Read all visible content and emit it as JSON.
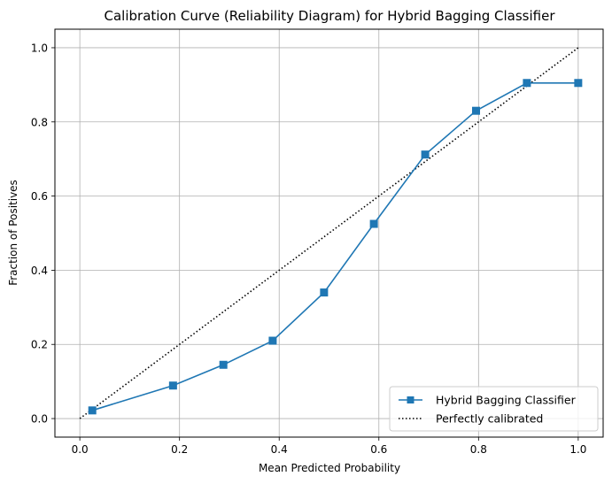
{
  "chart_data": {
    "type": "line",
    "title": "Calibration Curve (Reliability Diagram) for Hybrid Bagging Classifier",
    "xlabel": "Mean Predicted Probability",
    "ylabel": "Fraction of Positives",
    "xlim": [
      -0.05,
      1.05
    ],
    "ylim": [
      -0.05,
      1.05
    ],
    "xticks": [
      0.0,
      0.2,
      0.4,
      0.6,
      0.8,
      1.0
    ],
    "yticks": [
      0.0,
      0.2,
      0.4,
      0.6,
      0.8,
      1.0
    ],
    "xtick_labels": [
      "0.0",
      "0.2",
      "0.4",
      "0.6",
      "0.8",
      "1.0"
    ],
    "ytick_labels": [
      "0.0",
      "0.2",
      "0.4",
      "0.6",
      "0.8",
      "1.0"
    ],
    "grid": true,
    "legend_position": "lower-right",
    "series": [
      {
        "name": "Hybrid Bagging Classifier",
        "style": "solid line with square markers",
        "color": "#1f77b4",
        "x": [
          0.025,
          0.187,
          0.288,
          0.387,
          0.49,
          0.59,
          0.693,
          0.795,
          0.897,
          1.0
        ],
        "y": [
          0.022,
          0.089,
          0.145,
          0.21,
          0.34,
          0.525,
          0.712,
          0.83,
          0.905,
          0.905
        ]
      },
      {
        "name": "Perfectly calibrated",
        "style": "dotted line",
        "color": "#000000",
        "x": [
          0.0,
          1.0
        ],
        "y": [
          0.0,
          1.0
        ]
      }
    ]
  }
}
